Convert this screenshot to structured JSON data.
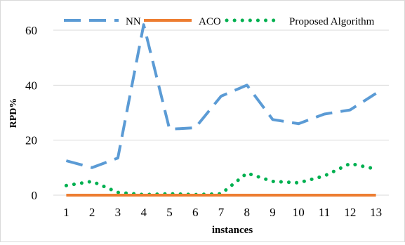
{
  "chart_data": {
    "type": "line",
    "xlabel": "instances",
    "ylabel": "RPD%",
    "categories": [
      "1",
      "2",
      "3",
      "4",
      "5",
      "6",
      "7",
      "8",
      "9",
      "10",
      "11",
      "12",
      "13"
    ],
    "ylim": [
      0,
      60
    ],
    "yticks": [
      0,
      20,
      40,
      60
    ],
    "grid": "horizontal",
    "legend_position": "top",
    "series": [
      {
        "name": "NN",
        "color": "#5b9bd5",
        "style": "long-dash",
        "values": [
          12.5,
          10,
          13.5,
          62,
          24,
          24.5,
          36,
          40,
          27.5,
          26,
          29.5,
          31,
          37
        ]
      },
      {
        "name": "ACO",
        "color": "#ed7d31",
        "style": "solid",
        "values": [
          0,
          0,
          0,
          0,
          0,
          0,
          0,
          0,
          0,
          0,
          0,
          0,
          0
        ]
      },
      {
        "name": "Proposed Algorithm",
        "color": "#00b050",
        "style": "dotted",
        "values": [
          3.5,
          5,
          1,
          0.2,
          0.5,
          0.2,
          0.5,
          8,
          5,
          4.5,
          7,
          11.5,
          9.5
        ]
      }
    ]
  }
}
